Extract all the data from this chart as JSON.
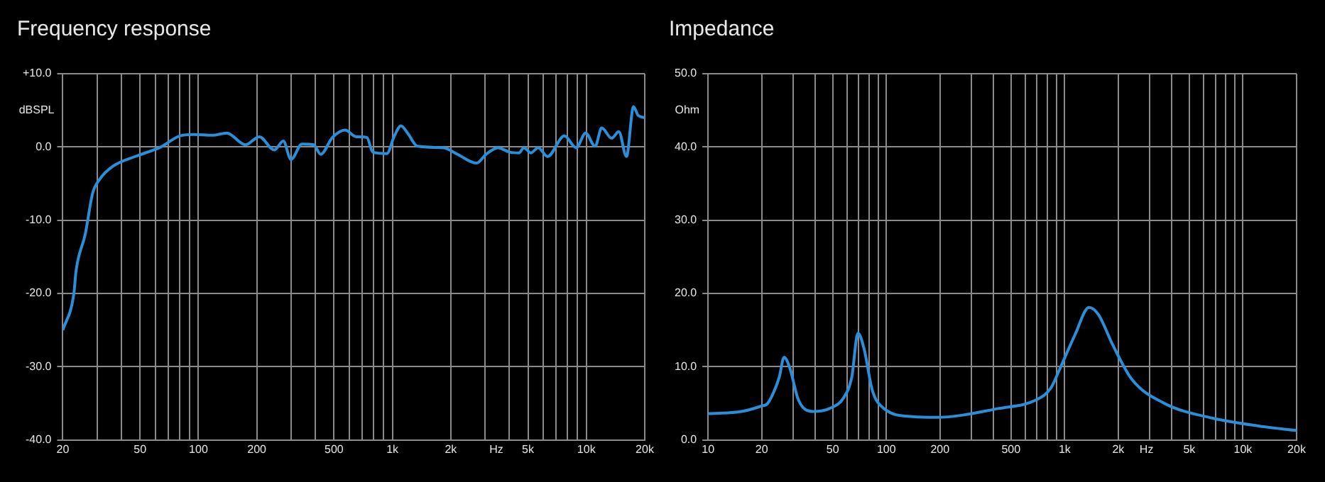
{
  "chart_data": [
    {
      "type": "line",
      "title": "Frequency response",
      "xlabel": "Hz",
      "ylabel": "dBSPL",
      "log": "x",
      "grid": true,
      "marker": "none",
      "line_style": "solid",
      "legend": false,
      "xlim": [
        20,
        20000
      ],
      "ylim": [
        -40,
        10
      ],
      "xticks": [
        20,
        {
          "value": 30,
          "label": null
        },
        {
          "value": 40,
          "label": null
        },
        50,
        {
          "value": 60,
          "label": null
        },
        {
          "value": 70,
          "label": null
        },
        {
          "value": 80,
          "label": null
        },
        {
          "value": 90,
          "label": null
        },
        100,
        200,
        {
          "value": 300,
          "label": null
        },
        {
          "value": 400,
          "label": null
        },
        500,
        {
          "value": 600,
          "label": null
        },
        {
          "value": 700,
          "label": null
        },
        {
          "value": 800,
          "label": null
        },
        {
          "value": 900,
          "label": null
        },
        {
          "value": 1000,
          "label": "1k"
        },
        {
          "value": 2000,
          "label": "2k"
        },
        {
          "value": 3000,
          "label": null
        },
        {
          "value": 4000,
          "label": null
        },
        {
          "value": 5000,
          "label": "5k"
        },
        {
          "value": 6000,
          "label": null
        },
        {
          "value": 7000,
          "label": null
        },
        {
          "value": 8000,
          "label": null
        },
        {
          "value": 9000,
          "label": null
        },
        {
          "value": 10000,
          "label": "10k"
        },
        {
          "value": 20000,
          "label": "20k"
        }
      ],
      "yticks": [
        {
          "value": 10,
          "label": "+10.0"
        },
        {
          "value": 0,
          "label": "0.0"
        },
        {
          "value": -10,
          "label": "-10.0"
        },
        {
          "value": -20,
          "label": "-20.0"
        },
        {
          "value": -30,
          "label": "-30.0"
        },
        {
          "value": -40,
          "label": "-40.0"
        }
      ],
      "series": [
        {
          "color": "#2a8fd8",
          "x": [
            20,
            22.8,
            23.4,
            26.1,
            28.5,
            31,
            36.4,
            48.4,
            64,
            80,
            94.5,
            118,
            140,
            175,
            206,
            246,
            274,
            300,
            342,
            393,
            427,
            491,
            571,
            650,
            739,
            792,
            937,
            1020,
            1107,
            1205,
            1346,
            1836,
            2167,
            2718,
            3040,
            3500,
            4020,
            4500,
            4760,
            5180,
            5640,
            6310,
            7700,
            8870,
            9920,
            11100,
            12000,
            13500,
            14700,
            16100,
            17500,
            18500,
            20000
          ],
          "values": [
            -25,
            -20,
            -16.9,
            -11.9,
            -6.3,
            -4.4,
            -2.6,
            -1.2,
            0,
            1.5,
            1.7,
            1.6,
            1.9,
            0.3,
            1.4,
            -0.4,
            0.8,
            -1.7,
            0.4,
            0.3,
            -1,
            1.3,
            2.3,
            1.4,
            1.3,
            -0.7,
            -0.9,
            1.4,
            2.9,
            1.8,
            0.1,
            -0.1,
            -1,
            -2.2,
            -1,
            -0.1,
            -0.7,
            -0.8,
            -0.1,
            -0.8,
            -0.1,
            -1.3,
            1.5,
            -0.1,
            1.9,
            0.1,
            2.6,
            1.2,
            2.1,
            -1.3,
            5.5,
            4.3,
            4
          ]
        }
      ]
    },
    {
      "type": "line",
      "title": "Impedance",
      "xlabel": "Hz",
      "ylabel": "Ohm",
      "log": "x",
      "grid": true,
      "marker": "none",
      "line_style": "solid",
      "legend": false,
      "xlim": [
        10,
        20000
      ],
      "ylim": [
        0,
        50
      ],
      "xticks": [
        10,
        20,
        {
          "value": 30,
          "label": null
        },
        {
          "value": 40,
          "label": null
        },
        50,
        {
          "value": 60,
          "label": null
        },
        {
          "value": 70,
          "label": null
        },
        {
          "value": 80,
          "label": null
        },
        {
          "value": 90,
          "label": null
        },
        100,
        200,
        {
          "value": 300,
          "label": null
        },
        {
          "value": 400,
          "label": null
        },
        500,
        {
          "value": 600,
          "label": null
        },
        {
          "value": 700,
          "label": null
        },
        {
          "value": 800,
          "label": null
        },
        {
          "value": 900,
          "label": null
        },
        {
          "value": 1000,
          "label": "1k"
        },
        {
          "value": 2000,
          "label": "2k"
        },
        {
          "value": 3000,
          "label": null
        },
        {
          "value": 4000,
          "label": null
        },
        {
          "value": 5000,
          "label": "5k"
        },
        {
          "value": 6000,
          "label": null
        },
        {
          "value": 7000,
          "label": null
        },
        {
          "value": 8000,
          "label": null
        },
        {
          "value": 9000,
          "label": null
        },
        {
          "value": 10000,
          "label": "10k"
        },
        {
          "value": 20000,
          "label": "20k"
        }
      ],
      "yticks": [
        {
          "value": 0,
          "label": "0.0"
        },
        {
          "value": 10,
          "label": "10.0"
        },
        {
          "value": 20,
          "label": "20.0"
        },
        {
          "value": 30,
          "label": "30.0"
        },
        {
          "value": 40,
          "label": "40.0"
        },
        {
          "value": 50,
          "label": "50.0"
        }
      ],
      "series": [
        {
          "color": "#2a8fd8",
          "x": [
            10,
            15.4,
            19.7,
            21.6,
            23.6,
            25.1,
            26.7,
            28.7,
            32.1,
            38.7,
            47.9,
            57.7,
            64,
            69.3,
            75.1,
            83.4,
            97,
            140,
            191,
            424,
            695,
            837,
            947,
            1140,
            1370,
            1550,
            1860,
            2380,
            3630,
            6700,
            12400,
            20000
          ],
          "values": [
            3.6,
            3.9,
            4.6,
            5,
            6.8,
            8.6,
            11.3,
            9.9,
            5.5,
            3.9,
            4.3,
            5.8,
            8.6,
            14.6,
            12.4,
            6.8,
            4.3,
            3.2,
            3.1,
            4.3,
            5.5,
            7.1,
            9.9,
            14.3,
            18.1,
            17.1,
            13,
            8.3,
            5,
            3,
            1.9,
            1.3
          ]
        }
      ]
    }
  ]
}
